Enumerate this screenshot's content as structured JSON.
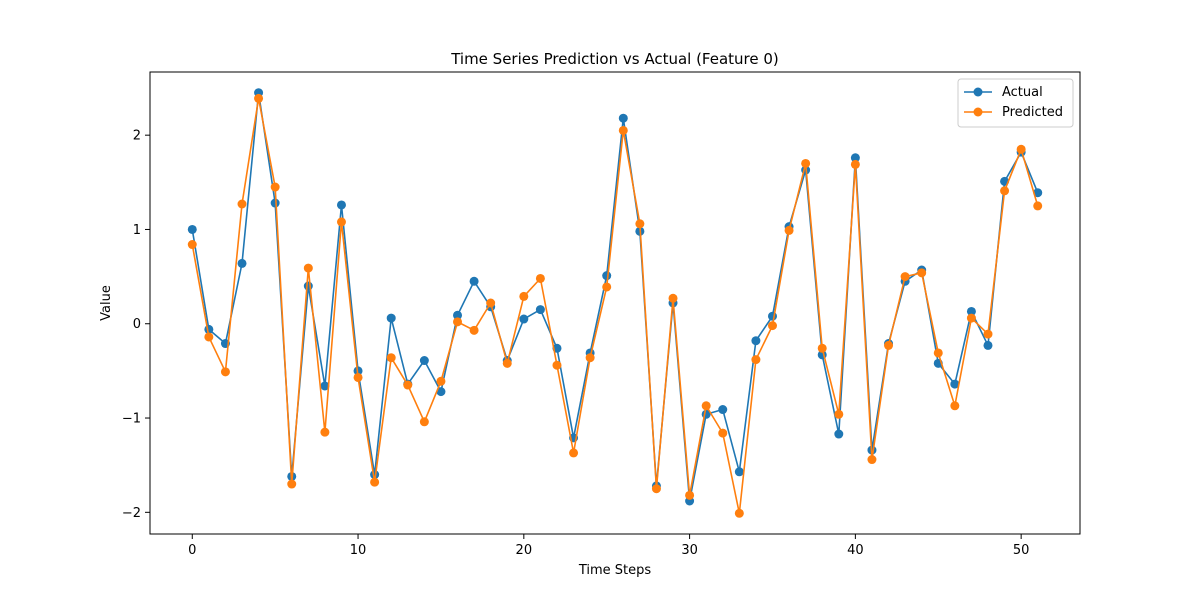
{
  "chart_data": {
    "type": "line",
    "title": "Time Series Prediction vs Actual (Feature 0)",
    "xlabel": "Time Steps",
    "ylabel": "Value",
    "xlim": [
      -2.55,
      53.55
    ],
    "ylim": [
      -2.23,
      2.67
    ],
    "xticks": [
      0,
      10,
      20,
      30,
      40,
      50
    ],
    "yticks": [
      -2,
      -1,
      0,
      1,
      2
    ],
    "ytick_labels": [
      "−2",
      "−1",
      "0",
      "1",
      "2"
    ],
    "grid": false,
    "legend_position": "top-right",
    "markers": true,
    "x": [
      0,
      1,
      2,
      3,
      4,
      5,
      6,
      7,
      8,
      9,
      10,
      11,
      12,
      13,
      14,
      15,
      16,
      17,
      18,
      19,
      20,
      21,
      22,
      23,
      24,
      25,
      26,
      27,
      28,
      29,
      30,
      31,
      32,
      33,
      34,
      35,
      36,
      37,
      38,
      39,
      40,
      41,
      42,
      43,
      44,
      45,
      46,
      47,
      48,
      49,
      50,
      51
    ],
    "series": [
      {
        "name": "Actual",
        "color": "#1f77b4",
        "values": [
          1.0,
          -0.06,
          -0.21,
          0.64,
          2.45,
          1.28,
          -1.62,
          0.4,
          -0.66,
          1.26,
          -0.5,
          -1.6,
          0.06,
          -0.64,
          -0.39,
          -0.72,
          0.09,
          0.45,
          0.18,
          -0.39,
          0.05,
          0.15,
          -0.26,
          -1.21,
          -0.31,
          0.51,
          2.18,
          0.98,
          -1.72,
          0.22,
          -1.88,
          -0.96,
          -0.91,
          -1.57,
          -0.18,
          0.08,
          1.03,
          1.63,
          -0.33,
          -1.17,
          1.76,
          -1.34,
          -0.21,
          0.45,
          0.57,
          -0.42,
          -0.64,
          0.13,
          -0.23,
          1.51,
          1.82,
          1.39
        ]
      },
      {
        "name": "Predicted",
        "color": "#ff7f0e",
        "values": [
          0.84,
          -0.14,
          -0.51,
          1.27,
          2.39,
          1.45,
          -1.7,
          0.59,
          -1.15,
          1.08,
          -0.57,
          -1.68,
          -0.36,
          -0.65,
          -1.04,
          -0.61,
          0.02,
          -0.07,
          0.22,
          -0.42,
          0.29,
          0.48,
          -0.44,
          -1.37,
          -0.36,
          0.39,
          2.05,
          1.06,
          -1.75,
          0.27,
          -1.82,
          -0.87,
          -1.16,
          -2.01,
          -0.38,
          -0.02,
          0.99,
          1.7,
          -0.26,
          -0.96,
          1.69,
          -1.44,
          -0.23,
          0.5,
          0.54,
          -0.31,
          -0.87,
          0.06,
          -0.11,
          1.41,
          1.85,
          1.25
        ]
      }
    ]
  }
}
